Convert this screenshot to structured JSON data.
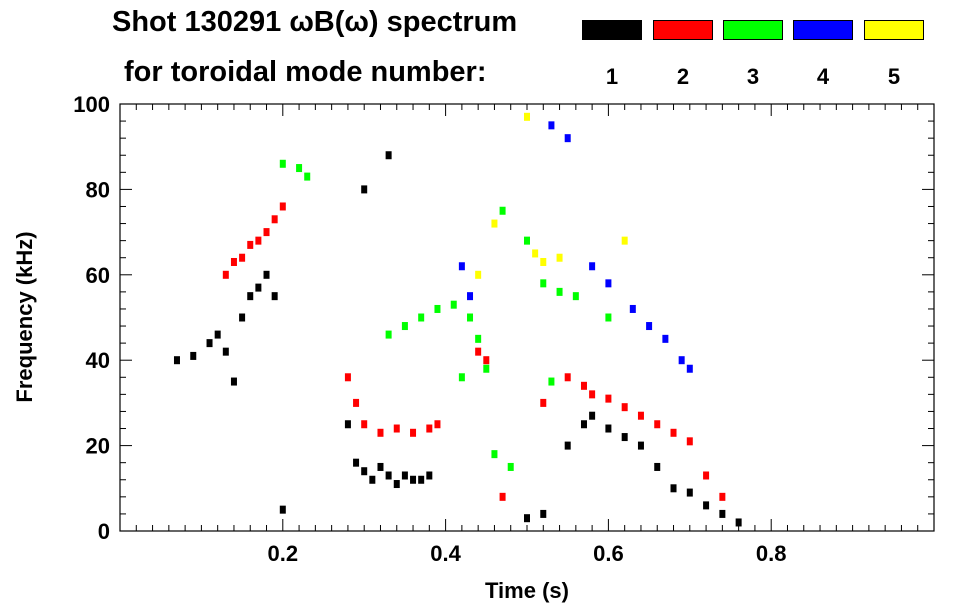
{
  "chart_data": {
    "type": "scatter",
    "title": "Shot 130291 ωB(ω) spectrum",
    "subtitle": "for toroidal mode number:",
    "xlabel": "Time (s)",
    "ylabel": "Frequency (kHz)",
    "xlim": [
      0.0,
      1.0
    ],
    "ylim": [
      0,
      100
    ],
    "x_ticks": [
      "0.2",
      "0.4",
      "0.6",
      "0.8"
    ],
    "x_tick_values": [
      0.2,
      0.4,
      0.6,
      0.8
    ],
    "y_ticks": [
      "0",
      "20",
      "40",
      "60",
      "80",
      "100"
    ],
    "y_tick_values": [
      0,
      20,
      40,
      60,
      80,
      100
    ],
    "legend_placement": "top-right",
    "series": [
      {
        "name": "1",
        "color": "#000000",
        "points": [
          [
            0.07,
            40
          ],
          [
            0.09,
            41
          ],
          [
            0.11,
            44
          ],
          [
            0.12,
            46
          ],
          [
            0.13,
            42
          ],
          [
            0.14,
            35
          ],
          [
            0.15,
            50
          ],
          [
            0.16,
            55
          ],
          [
            0.17,
            57
          ],
          [
            0.18,
            60
          ],
          [
            0.19,
            55
          ],
          [
            0.2,
            5
          ],
          [
            0.28,
            25
          ],
          [
            0.29,
            16
          ],
          [
            0.3,
            14
          ],
          [
            0.31,
            12
          ],
          [
            0.32,
            15
          ],
          [
            0.33,
            13
          ],
          [
            0.34,
            11
          ],
          [
            0.35,
            13
          ],
          [
            0.36,
            12
          ],
          [
            0.37,
            12
          ],
          [
            0.38,
            13
          ],
          [
            0.3,
            80
          ],
          [
            0.33,
            88
          ],
          [
            0.5,
            3
          ],
          [
            0.52,
            4
          ],
          [
            0.55,
            20
          ],
          [
            0.57,
            25
          ],
          [
            0.58,
            27
          ],
          [
            0.6,
            24
          ],
          [
            0.62,
            22
          ],
          [
            0.64,
            20
          ],
          [
            0.66,
            15
          ],
          [
            0.68,
            10
          ],
          [
            0.7,
            9
          ],
          [
            0.72,
            6
          ],
          [
            0.74,
            4
          ],
          [
            0.76,
            2
          ]
        ]
      },
      {
        "name": "2",
        "color": "#ff0000",
        "points": [
          [
            0.13,
            60
          ],
          [
            0.14,
            63
          ],
          [
            0.15,
            64
          ],
          [
            0.16,
            67
          ],
          [
            0.17,
            68
          ],
          [
            0.18,
            70
          ],
          [
            0.19,
            73
          ],
          [
            0.2,
            76
          ],
          [
            0.28,
            36
          ],
          [
            0.29,
            30
          ],
          [
            0.3,
            25
          ],
          [
            0.32,
            23
          ],
          [
            0.34,
            24
          ],
          [
            0.36,
            23
          ],
          [
            0.38,
            24
          ],
          [
            0.39,
            25
          ],
          [
            0.44,
            42
          ],
          [
            0.45,
            40
          ],
          [
            0.47,
            8
          ],
          [
            0.52,
            30
          ],
          [
            0.55,
            36
          ],
          [
            0.57,
            34
          ],
          [
            0.58,
            32
          ],
          [
            0.6,
            31
          ],
          [
            0.62,
            29
          ],
          [
            0.64,
            27
          ],
          [
            0.66,
            25
          ],
          [
            0.68,
            23
          ],
          [
            0.7,
            21
          ],
          [
            0.72,
            13
          ],
          [
            0.74,
            8
          ]
        ]
      },
      {
        "name": "3",
        "color": "#00ff00",
        "points": [
          [
            0.2,
            86
          ],
          [
            0.22,
            85
          ],
          [
            0.23,
            83
          ],
          [
            0.33,
            46
          ],
          [
            0.35,
            48
          ],
          [
            0.37,
            50
          ],
          [
            0.39,
            52
          ],
          [
            0.41,
            53
          ],
          [
            0.43,
            50
          ],
          [
            0.44,
            45
          ],
          [
            0.45,
            38
          ],
          [
            0.42,
            36
          ],
          [
            0.47,
            75
          ],
          [
            0.5,
            68
          ],
          [
            0.52,
            58
          ],
          [
            0.54,
            56
          ],
          [
            0.56,
            55
          ],
          [
            0.6,
            50
          ],
          [
            0.46,
            18
          ],
          [
            0.48,
            15
          ],
          [
            0.53,
            35
          ]
        ]
      },
      {
        "name": "4",
        "color": "#0000ff",
        "points": [
          [
            0.53,
            95
          ],
          [
            0.55,
            92
          ],
          [
            0.58,
            62
          ],
          [
            0.6,
            58
          ],
          [
            0.63,
            52
          ],
          [
            0.65,
            48
          ],
          [
            0.67,
            45
          ],
          [
            0.69,
            40
          ],
          [
            0.7,
            38
          ],
          [
            0.43,
            55
          ],
          [
            0.42,
            62
          ]
        ]
      },
      {
        "name": "5",
        "color": "#ffff00",
        "points": [
          [
            0.5,
            97
          ],
          [
            0.51,
            65
          ],
          [
            0.52,
            63
          ],
          [
            0.54,
            64
          ],
          [
            0.62,
            68
          ],
          [
            0.46,
            72
          ],
          [
            0.44,
            60
          ]
        ]
      }
    ]
  }
}
